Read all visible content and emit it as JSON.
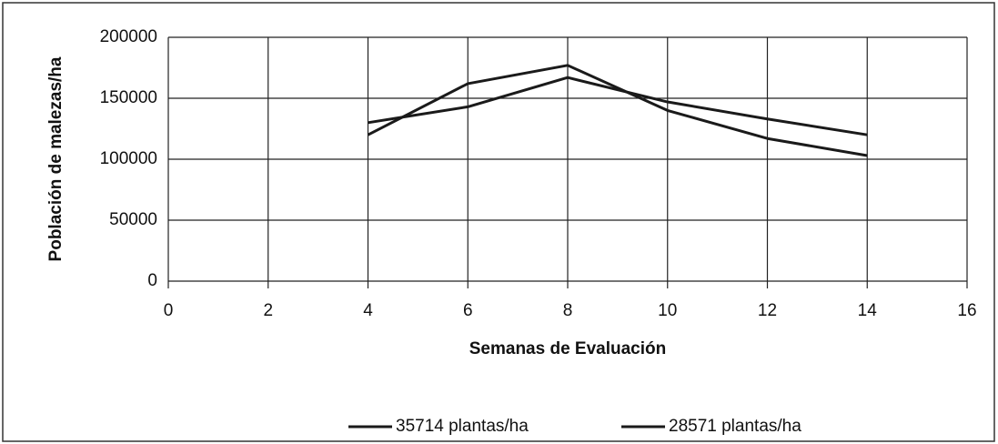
{
  "chart_data": {
    "type": "line",
    "x_label": "Semanas de Evaluación",
    "y_label": "Población de malezas/ha",
    "x": [
      4,
      6,
      8,
      10,
      12,
      14
    ],
    "series": [
      {
        "name": "35714 plantas/ha",
        "color": "#1a1a1a",
        "values": [
          120000,
          162000,
          177000,
          140000,
          117000,
          103000
        ]
      },
      {
        "name": "28571 plantas/ha",
        "color": "#1a1a1a",
        "values": [
          130000,
          143000,
          167000,
          147000,
          133000,
          120000
        ]
      }
    ],
    "xlim": [
      0,
      16
    ],
    "xticks": [
      0,
      2,
      4,
      6,
      8,
      10,
      12,
      14,
      16
    ],
    "ylim": [
      0,
      200000
    ],
    "yticks": [
      0,
      50000,
      100000,
      150000,
      200000
    ],
    "grid": true,
    "legend": "bottom"
  }
}
